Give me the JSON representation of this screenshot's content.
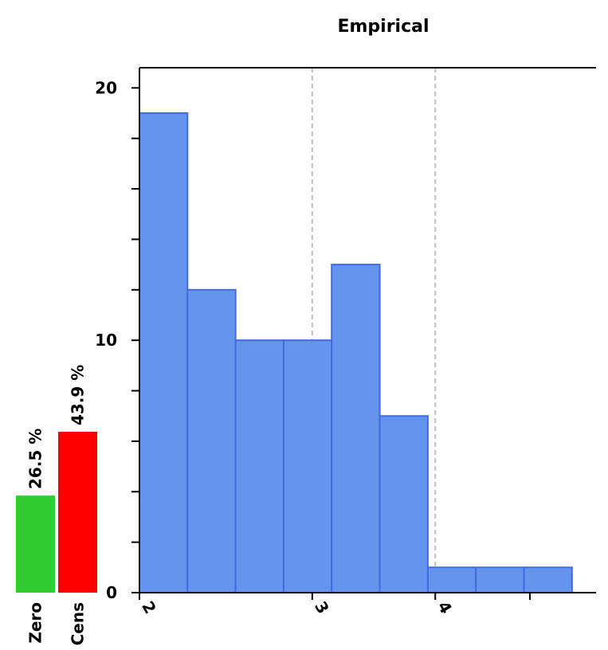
{
  "chart_data": {
    "type": "bar",
    "title": "Empirical",
    "xlabel": "",
    "ylabel": "",
    "bins": [
      {
        "x0": 2.0,
        "x1": 2.4,
        "count": 19
      },
      {
        "x0": 2.4,
        "x1": 2.8,
        "count": 12
      },
      {
        "x0": 2.8,
        "x1": 3.2,
        "count": 10
      },
      {
        "x0": 3.2,
        "x1": 3.6,
        "count": 10
      },
      {
        "x0": 3.6,
        "x1": 4.0,
        "count": 13
      },
      {
        "x0": 4.0,
        "x1": 4.4,
        "count": 7
      },
      {
        "x0": 4.4,
        "x1": 4.8,
        "count": 1
      },
      {
        "x0": 4.8,
        "x1": 5.2,
        "count": 1
      },
      {
        "x0": 5.2,
        "x1": 5.6,
        "count": 1
      }
    ],
    "xlim": [
      2.0,
      5.8
    ],
    "ylim": [
      0,
      20.8
    ],
    "x_ticks": [
      {
        "value": 2.0,
        "label": "2"
      },
      {
        "value": 3.438,
        "label": "3"
      },
      {
        "value": 4.462,
        "label": "4"
      },
      {
        "value": 5.25,
        "label": ""
      }
    ],
    "x_gridlines": [
      3.438,
      4.462
    ],
    "y_ticks": [
      0,
      2,
      4,
      6,
      8,
      10,
      12,
      14,
      16,
      18,
      20
    ],
    "y_tick_labels": [
      {
        "value": 0,
        "label": "0"
      },
      {
        "value": 10,
        "label": "10"
      },
      {
        "value": 20,
        "label": "20"
      }
    ],
    "side_bars": [
      {
        "name": "Zero",
        "label": "26.5 %",
        "value": 26.5,
        "color": "#33cc33"
      },
      {
        "name": "Cens",
        "label": "43.9 %",
        "value": 43.9,
        "color": "#ff0000"
      }
    ],
    "bar_color": "#6495ed",
    "bar_edge_color": "#4169e1"
  }
}
